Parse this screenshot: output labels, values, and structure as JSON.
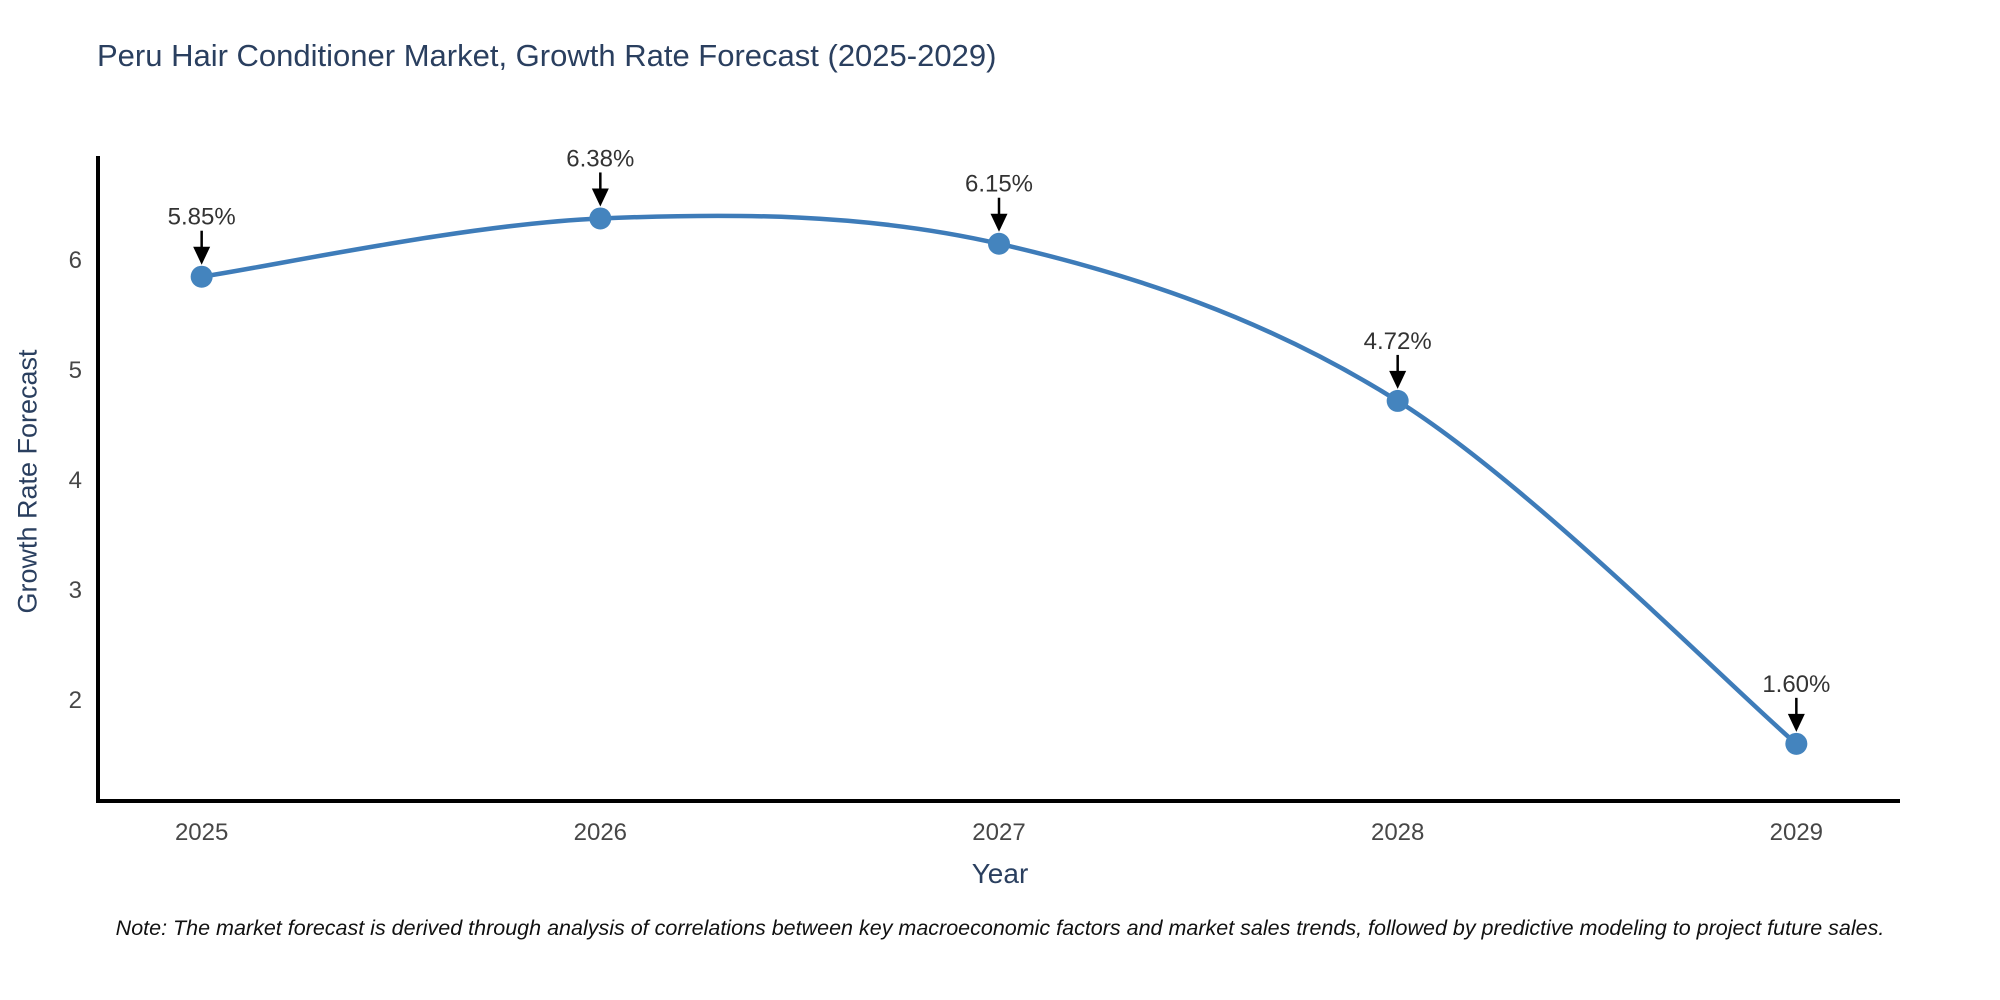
{
  "title": "Peru Hair Conditioner Market, Growth Rate Forecast (2025-2029)",
  "note": "Note: The market forecast is derived through analysis of correlations between key macroeconomic factors and market sales trends, followed by predictive modeling to project future sales.",
  "chart_data": {
    "type": "line",
    "title": "Peru Hair Conditioner Market, Growth Rate Forecast (2025-2029)",
    "xlabel": "Year",
    "ylabel": "Growth Rate Forecast",
    "x": [
      2025,
      2026,
      2027,
      2028,
      2029
    ],
    "values": [
      5.85,
      6.38,
      6.15,
      4.72,
      1.6
    ],
    "point_labels": [
      "5.85%",
      "6.38%",
      "6.15%",
      "4.72%",
      "1.60%"
    ],
    "xtick_labels": [
      "2025",
      "2026",
      "2027",
      "2028",
      "2029"
    ],
    "ytick_values": [
      2,
      3,
      4,
      5,
      6
    ],
    "xlim": [
      2024.74,
      2029.26
    ],
    "ylim": [
      1.08,
      6.93
    ],
    "line_shape": "spline",
    "grid": false,
    "legend": false,
    "marker_size": 11,
    "colors": {
      "line": "#3e7cb9",
      "marker": "#4484be",
      "arrow": "#000000",
      "spine": "#000000",
      "title": "#2a3f5f",
      "axis_title": "#2a3f5f",
      "tick_label": "#474747",
      "annotation": "#333333",
      "background": "#ffffff"
    }
  }
}
